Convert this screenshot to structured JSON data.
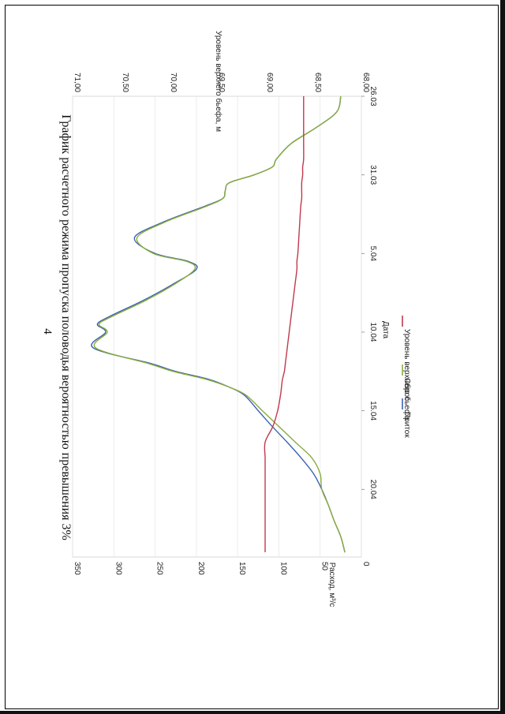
{
  "page_number": "4",
  "chart_data": {
    "type": "line",
    "title": "График расчетного режима пропуска половодья вероятностью превышения 3%",
    "xlabel": "Дата",
    "ylabel": "Расход, м³/с",
    "y2label": "Уровень верхнего бьефа, м",
    "orientation": "rotated 90° clockwise on page",
    "x_ticks": [
      "26.03",
      "31.03",
      "5.04",
      "10.04",
      "15.04",
      "20.04"
    ],
    "x_tick_values": [
      0,
      5,
      10,
      15,
      20,
      25
    ],
    "xlim": [
      0,
      29.3
    ],
    "y_ticks": [
      "0",
      "50",
      "100",
      "150",
      "200",
      "250",
      "300",
      "350"
    ],
    "ylim": [
      0,
      350
    ],
    "y2_ticks": [
      "68,00",
      "68,50",
      "69,00",
      "69,50",
      "70,00",
      "70,50",
      "71,00"
    ],
    "y2lim": [
      68.0,
      71.0
    ],
    "grid": true,
    "legend_position": "bottom",
    "x": [
      0,
      1,
      2,
      3,
      4,
      4.5,
      5,
      5.5,
      6,
      6.5,
      7,
      8,
      9,
      10,
      10.5,
      11,
      12,
      13,
      14,
      14.5,
      15,
      16,
      17,
      17.5,
      18,
      18.5,
      19,
      20,
      21,
      22,
      23,
      24,
      25,
      26,
      27,
      28,
      29
    ],
    "series": [
      {
        "name": "Приток",
        "axis": "left",
        "color": "#3a62b0",
        "values": [
          25,
          30,
          55,
          85,
          103,
          108,
          130,
          160,
          165,
          168,
          190,
          240,
          275,
          250,
          210,
          200,
          230,
          265,
          305,
          320,
          310,
          325,
          255,
          225,
          185,
          160,
          142,
          125,
          108,
          90,
          73,
          58,
          48,
          40,
          33,
          25,
          20
        ]
      },
      {
        "name": "Сброс",
        "axis": "left",
        "color": "#8aac3c",
        "values": [
          25,
          30,
          55,
          85,
          103,
          108,
          130,
          160,
          165,
          168,
          188,
          238,
          272,
          252,
          212,
          202,
          228,
          262,
          302,
          318,
          308,
          322,
          258,
          228,
          188,
          160,
          140,
          120,
          100,
          80,
          60,
          50,
          48,
          40,
          33,
          25,
          20
        ]
      },
      {
        "name": "Уровень верхнего бьефа",
        "axis": "right",
        "color": "#c0394b",
        "values": [
          68.6,
          68.6,
          68.6,
          68.6,
          68.6,
          68.61,
          68.61,
          68.62,
          68.62,
          68.62,
          68.63,
          68.64,
          68.65,
          68.66,
          68.67,
          68.67,
          68.69,
          68.71,
          68.73,
          68.74,
          68.75,
          68.77,
          68.79,
          68.8,
          68.82,
          68.83,
          68.84,
          68.87,
          68.92,
          69.0,
          69.0,
          69.0,
          69.0,
          69.0,
          69.0,
          69.0,
          69.0
        ]
      }
    ]
  }
}
